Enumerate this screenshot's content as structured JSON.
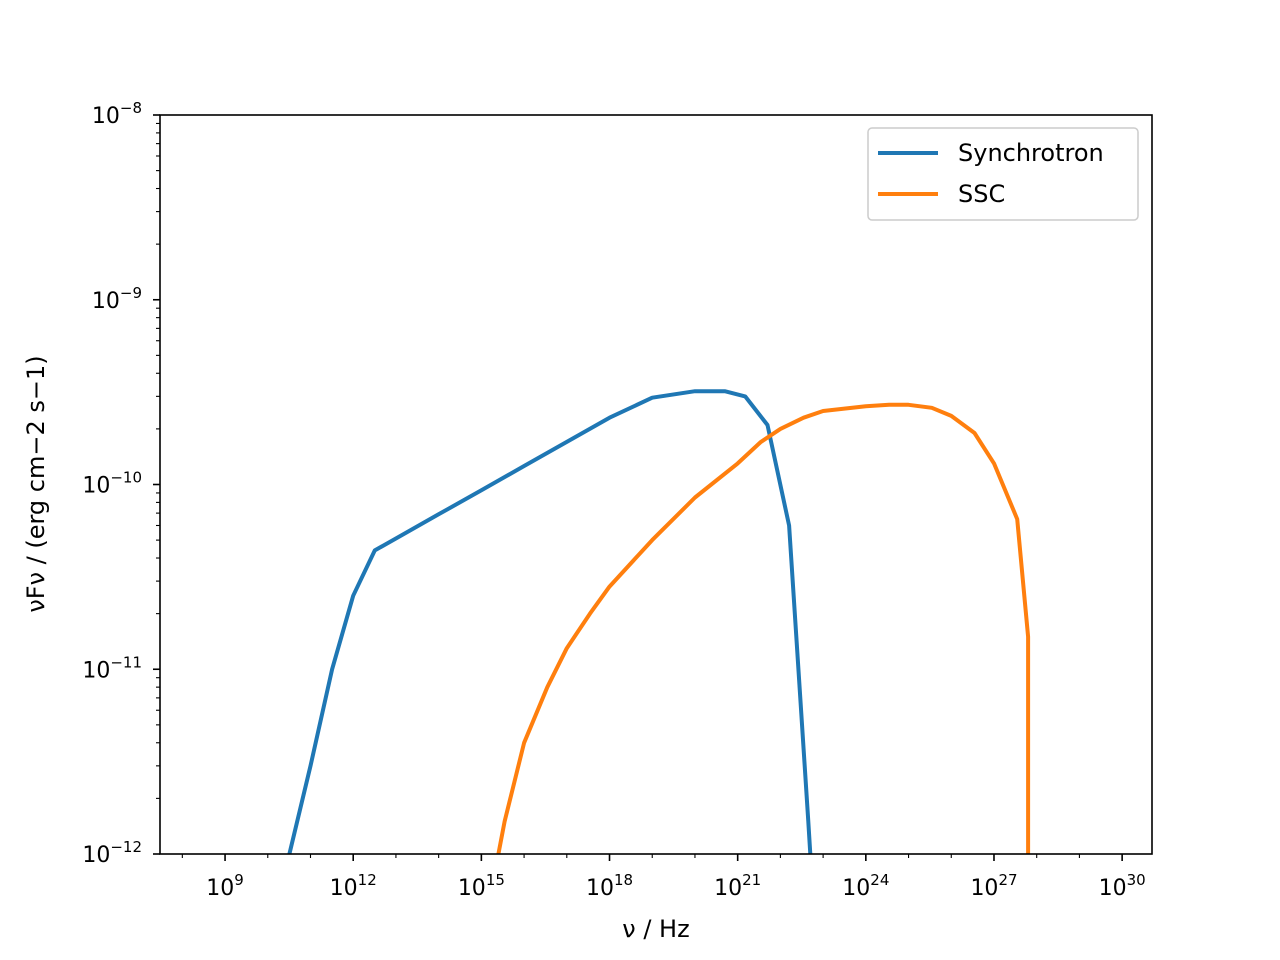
{
  "chart_data": {
    "type": "line",
    "title": "",
    "xlabel": "ν / Hz",
    "ylabel": "νFν / (erg cm−2 s−1)",
    "xscale": "log",
    "yscale": "log",
    "xlim": [
      30000000.0,
      5e+30
    ],
    "ylim": [
      1e-12,
      1e-08
    ],
    "grid": false,
    "legend": {
      "placement": "top-right"
    },
    "x_ticks": [
      {
        "base": "10",
        "exp": "9",
        "value": 1000000000.0
      },
      {
        "base": "10",
        "exp": "12",
        "value": 1000000000000.0
      },
      {
        "base": "10",
        "exp": "15",
        "value": 1000000000000000.0
      },
      {
        "base": "10",
        "exp": "18",
        "value": 1e+18
      },
      {
        "base": "10",
        "exp": "21",
        "value": 1e+21
      },
      {
        "base": "10",
        "exp": "24",
        "value": 1e+24
      },
      {
        "base": "10",
        "exp": "27",
        "value": 1e+27
      },
      {
        "base": "10",
        "exp": "30",
        "value": 1e+30
      }
    ],
    "y_ticks": [
      {
        "base": "10",
        "exp": "−12",
        "value": 1e-12
      },
      {
        "base": "10",
        "exp": "−11",
        "value": 1e-11
      },
      {
        "base": "10",
        "exp": "−10",
        "value": 1e-10
      },
      {
        "base": "10",
        "exp": "−9",
        "value": 1e-09
      },
      {
        "base": "10",
        "exp": "−8",
        "value": 1e-08
      }
    ],
    "series": [
      {
        "name": "Synchrotron",
        "color": "#1f77b4",
        "x": [
          32000000000.0,
          100000000000.0,
          320000000000.0,
          1000000000000.0,
          3200000000000.0,
          10000000000000.0,
          100000000000000.0,
          1000000000000000.0,
          1e+16,
          1e+17,
          1e+18,
          1e+19,
          1e+20,
          5e+20,
          1.5e+21,
          5e+21,
          1.6e+22,
          4.5e+22,
          5e+22
        ],
        "y": [
          1e-12,
          3e-12,
          1e-11,
          2.5e-11,
          4.4e-11,
          5.1e-11,
          6.9e-11,
          9.3e-11,
          1.26e-10,
          1.7e-10,
          2.3e-10,
          2.95e-10,
          3.2e-10,
          3.2e-10,
          3e-10,
          2.1e-10,
          6e-11,
          1.5e-12,
          1e-12
        ]
      },
      {
        "name": "SSC",
        "color": "#ff7f0e",
        "x": [
          2500000000000000.0,
          3500000000000000.0,
          1e+16,
          3.5e+16,
          1e+17,
          3.5e+17,
          1e+18,
          1e+19,
          1e+20,
          1e+21,
          3.5e+21,
          1e+22,
          3.5e+22,
          1e+23,
          1e+24,
          3.5e+24,
          1e+25,
          3.5e+25,
          1e+26,
          3.5e+26,
          1e+27,
          3.5e+27,
          6.3e+27,
          6.3e+27
        ],
        "y": [
          1e-12,
          1.5e-12,
          4e-12,
          8e-12,
          1.3e-11,
          2e-11,
          2.8e-11,
          5e-11,
          8.5e-11,
          1.3e-10,
          1.7e-10,
          2e-10,
          2.3e-10,
          2.5e-10,
          2.65e-10,
          2.7e-10,
          2.7e-10,
          2.6e-10,
          2.35e-10,
          1.9e-10,
          1.3e-10,
          6.5e-11,
          1.5e-11,
          1e-12
        ]
      }
    ]
  }
}
